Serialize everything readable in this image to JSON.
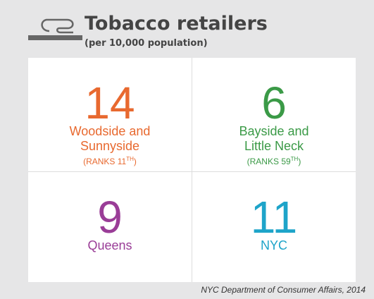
{
  "header": {
    "title": "Tobacco retailers",
    "subtitle": "(per 10,000 population)"
  },
  "cells": [
    {
      "value": "14",
      "name_lines": [
        "Woodside and",
        "Sunnyside"
      ],
      "rank": "(RANKS 11",
      "rank_suffix": "TH",
      "rank_close": ")",
      "color": "#e8692f"
    },
    {
      "value": "6",
      "name_lines": [
        "Bayside and",
        "Little Neck"
      ],
      "rank": "(RANKS 59",
      "rank_suffix": "TH",
      "rank_close": ")",
      "color": "#3b9a47"
    },
    {
      "value": "9",
      "name_lines": [
        "Queens"
      ],
      "color": "#9a3d97"
    },
    {
      "value": "11",
      "name_lines": [
        "NYC"
      ],
      "color": "#1ea4c9"
    }
  ],
  "source": "NYC Department of Consumer Affairs, 2014"
}
